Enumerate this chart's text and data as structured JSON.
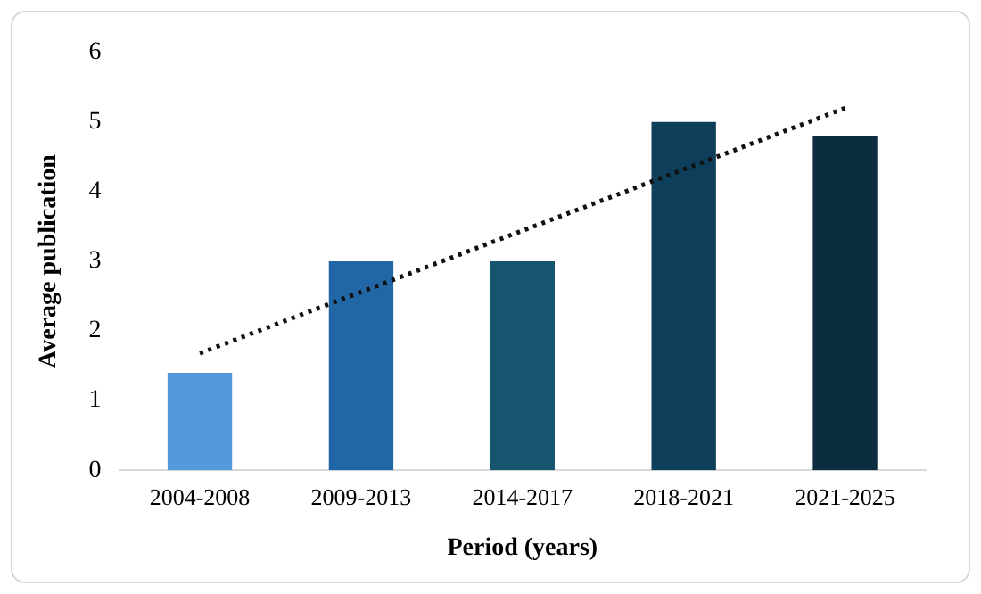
{
  "chart_data": {
    "type": "bar",
    "xlabel": "Period (years)",
    "ylabel": "Average publication",
    "categories": [
      "2004-2008",
      "2009-2013",
      "2014-2017",
      "2018-2021",
      "2021-2025"
    ],
    "series": [
      {
        "values": [
          1.4,
          3,
          3,
          5,
          4.8
        ],
        "colors": [
          "#5499dc",
          "#2166a5",
          "#15556e",
          "#0e3f5a",
          "#0c2d40"
        ]
      },
      {
        "type": "line",
        "x": [
          "2004-2008",
          "2021-2025"
        ],
        "values": [
          1.68,
          5.2
        ],
        "color": "#111111",
        "line_style": "dotted",
        "marker": "none"
      }
    ],
    "ylim": [
      0,
      6
    ],
    "yticks": [
      0,
      1,
      2,
      3,
      4,
      5,
      6
    ],
    "grid": false,
    "legend": false
  }
}
